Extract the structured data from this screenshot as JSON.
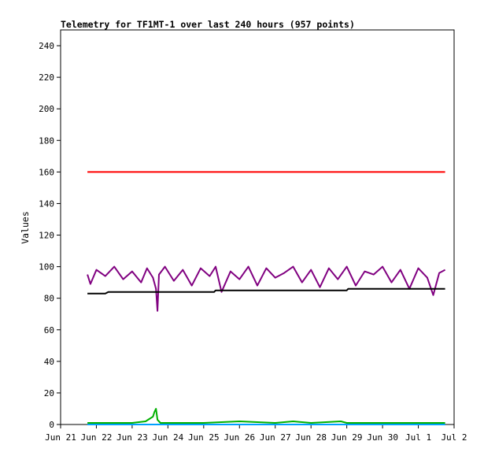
{
  "chart_data": {
    "type": "line",
    "title": "Telemetry for TF1MT-1 over last 240 hours (957 points)",
    "ylabel": "Values",
    "xlabel": "",
    "ylim": [
      0,
      250
    ],
    "xlim": [
      "2021-06-21",
      "2021-07-02"
    ],
    "yticks": [
      0,
      20,
      40,
      60,
      80,
      100,
      120,
      140,
      160,
      180,
      200,
      220,
      240
    ],
    "xticks": [
      {
        "date": "2021-06-21",
        "label": "Jun 21"
      },
      {
        "date": "2021-06-22",
        "label": "Jun 22"
      },
      {
        "date": "2021-06-23",
        "label": "Jun 23"
      },
      {
        "date": "2021-06-24",
        "label": "Jun 24"
      },
      {
        "date": "2021-06-25",
        "label": "Jun 25"
      },
      {
        "date": "2021-06-26",
        "label": "Jun 26"
      },
      {
        "date": "2021-06-27",
        "label": "Jun 27"
      },
      {
        "date": "2021-06-28",
        "label": "Jun 28"
      },
      {
        "date": "2021-06-29",
        "label": "Jun 29"
      },
      {
        "date": "2021-06-30",
        "label": "Jun 30"
      },
      {
        "date": "2021-07-01",
        "label": "Jul 1"
      },
      {
        "date": "2021-07-02",
        "label": "Jul 2"
      }
    ],
    "grid": false,
    "legend": "none",
    "series": [
      {
        "color": "#ff0000",
        "x": [
          "2021-06-21 18:00",
          "2021-07-01 18:00"
        ],
        "y": [
          160,
          160
        ]
      },
      {
        "color": "#800080",
        "x": [
          "2021-06-21 18:00",
          "2021-06-21 20:00",
          "2021-06-22 00:00",
          "2021-06-22 06:00",
          "2021-06-22 12:00",
          "2021-06-22 18:00",
          "2021-06-23 00:00",
          "2021-06-23 06:00",
          "2021-06-23 10:00",
          "2021-06-23 14:00",
          "2021-06-23 16:00",
          "2021-06-23 17:00",
          "2021-06-23 18:00",
          "2021-06-23 22:00",
          "2021-06-24 04:00",
          "2021-06-24 10:00",
          "2021-06-24 16:00",
          "2021-06-24 22:00",
          "2021-06-25 04:00",
          "2021-06-25 08:00",
          "2021-06-25 12:00",
          "2021-06-25 18:00",
          "2021-06-26 00:00",
          "2021-06-26 06:00",
          "2021-06-26 12:00",
          "2021-06-26 18:00",
          "2021-06-27 00:00",
          "2021-06-27 06:00",
          "2021-06-27 12:00",
          "2021-06-27 18:00",
          "2021-06-28 00:00",
          "2021-06-28 06:00",
          "2021-06-28 12:00",
          "2021-06-28 18:00",
          "2021-06-29 00:00",
          "2021-06-29 06:00",
          "2021-06-29 12:00",
          "2021-06-29 18:00",
          "2021-06-30 00:00",
          "2021-06-30 06:00",
          "2021-06-30 12:00",
          "2021-06-30 18:00",
          "2021-07-01 00:00",
          "2021-07-01 06:00",
          "2021-07-01 10:00",
          "2021-07-01 14:00",
          "2021-07-01 18:00"
        ],
        "y": [
          95,
          89,
          98,
          94,
          100,
          92,
          97,
          90,
          99,
          93,
          86,
          72,
          95,
          100,
          91,
          98,
          88,
          99,
          94,
          100,
          84,
          97,
          92,
          100,
          88,
          99,
          93,
          96,
          100,
          90,
          98,
          87,
          99,
          92,
          100,
          88,
          97,
          95,
          100,
          90,
          98,
          86,
          99,
          93,
          82,
          96,
          98
        ]
      },
      {
        "color": "#000000",
        "x": [
          "2021-06-21 18:00",
          "2021-06-22 06:00",
          "2021-06-22 08:00",
          "2021-06-25 07:00",
          "2021-06-25 08:00",
          "2021-06-29 00:00",
          "2021-06-29 01:00",
          "2021-07-01 18:00"
        ],
        "y": [
          83,
          83,
          84,
          84,
          85,
          85,
          86,
          86
        ]
      },
      {
        "color": "#00b000",
        "x": [
          "2021-06-21 18:00",
          "2021-06-22 12:00",
          "2021-06-23 00:00",
          "2021-06-23 09:00",
          "2021-06-23 14:00",
          "2021-06-23 15:00",
          "2021-06-23 16:00",
          "2021-06-23 17:00",
          "2021-06-23 19:00",
          "2021-06-24 00:00",
          "2021-06-25 00:00",
          "2021-06-26 00:00",
          "2021-06-27 00:00",
          "2021-06-27 12:00",
          "2021-06-28 00:00",
          "2021-06-28 20:00",
          "2021-06-29 00:00",
          "2021-06-30 00:00",
          "2021-07-01 00:00",
          "2021-07-01 18:00"
        ],
        "y": [
          1,
          1,
          1,
          2,
          5,
          8,
          10,
          3,
          1,
          1,
          1,
          2,
          1,
          2,
          1,
          2,
          1,
          1,
          1,
          1
        ]
      },
      {
        "color": "#00a0ff",
        "x": [
          "2021-06-21 18:00",
          "2021-07-01 18:00"
        ],
        "y": [
          0,
          0
        ]
      }
    ]
  }
}
